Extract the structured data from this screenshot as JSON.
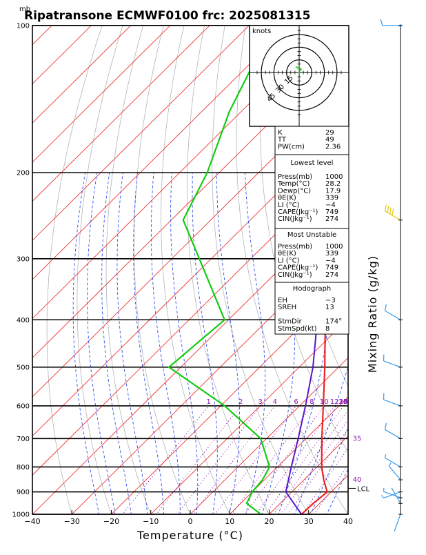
{
  "title": "Ripatransone ECMWF0100  frc: 2025081315",
  "pressure_unit": "mb",
  "colors": {
    "temperature": "#ee2020",
    "dewpoint": "#11cc11",
    "parcel": "#5a16c8",
    "isotherm": "#ee3333",
    "dry_adiabat": "#b4b4b4",
    "moist_adiabat": "#3050ee",
    "mixing_ratio": "#8a1ab0",
    "wind_barb_low": "#3399ee",
    "wind_barb_mid": "#e8c800"
  },
  "chart_data": {
    "type": "skew-t",
    "xlabel": "Temperature (°C)",
    "ylabel": "Mixing Ratio (g/kg)",
    "x_range": [
      -40,
      40
    ],
    "x_ticks": [
      "−40",
      "−30",
      "−20",
      "−10",
      "0",
      "10",
      "20",
      "30",
      "40"
    ],
    "pressure_range": [
      1000,
      100
    ],
    "pressure_ticks": [
      "1000",
      "900",
      "800",
      "700",
      "600",
      "500",
      "400",
      "300",
      "200",
      "100"
    ],
    "temperature_profile": [
      {
        "p": 1000,
        "t": 28.2
      },
      {
        "p": 950,
        "t": 28.4
      },
      {
        "p": 900,
        "t": 29.0
      },
      {
        "p": 850,
        "t": 25.0
      },
      {
        "p": 800,
        "t": 21.2
      },
      {
        "p": 700,
        "t": 14.0
      },
      {
        "p": 600,
        "t": 6.0
      },
      {
        "p": 500,
        "t": -3.5
      },
      {
        "p": 400,
        "t": -15.5
      },
      {
        "p": 300,
        "t": -31.0
      },
      {
        "p": 250,
        "t": -41.5
      },
      {
        "p": 200,
        "t": -52.5
      },
      {
        "p": 150,
        "t": -63.5
      },
      {
        "p": 100,
        "t": -76.0
      }
    ],
    "dewpoint_profile": [
      {
        "p": 1000,
        "t": 17.9
      },
      {
        "p": 950,
        "t": 11.5
      },
      {
        "p": 900,
        "t": 10.0
      },
      {
        "p": 850,
        "t": 9.5
      },
      {
        "p": 800,
        "t": 8.0
      },
      {
        "p": 700,
        "t": -1.5
      },
      {
        "p": 600,
        "t": -19.0
      },
      {
        "p": 500,
        "t": -43.0
      },
      {
        "p": 400,
        "t": -41.0
      },
      {
        "p": 300,
        "t": -63.0
      },
      {
        "p": 250,
        "t": -77.0
      },
      {
        "p": 200,
        "t": -83.0
      },
      {
        "p": 150,
        "t": -93.0
      },
      {
        "p": 100,
        "t": -104.0
      }
    ],
    "parcel_profile": [
      {
        "p": 1000,
        "t": 28.2
      },
      {
        "p": 900,
        "t": 18.5
      },
      {
        "p": 800,
        "t": 13.5
      },
      {
        "p": 700,
        "t": 8.0
      },
      {
        "p": 600,
        "t": 1.5
      },
      {
        "p": 500,
        "t": -6.5
      },
      {
        "p": 400,
        "t": -17.5
      },
      {
        "p": 300,
        "t": -33.5
      },
      {
        "p": 200,
        "t": -58.0
      },
      {
        "p": 100,
        "t": -100.0
      }
    ],
    "lcl_label": "LCL",
    "lcl_pressure": 885,
    "mixing_ratio_lines": [
      {
        "w": 1,
        "label": "1"
      },
      {
        "w": 2,
        "label": "2"
      },
      {
        "w": 3,
        "label": "3"
      },
      {
        "w": 4,
        "label": "4"
      },
      {
        "w": 6,
        "label": "6"
      },
      {
        "w": 8,
        "label": "8"
      },
      {
        "w": 10,
        "label": "10"
      },
      {
        "w": 12,
        "label": "12"
      },
      {
        "w": 14,
        "label": "14"
      },
      {
        "w": 16,
        "label": "16"
      },
      {
        "w": 18,
        "label": "18"
      },
      {
        "w": 20,
        "label": "20"
      },
      {
        "w": 25,
        "label": "25"
      },
      {
        "w": 30,
        "label": "30"
      }
    ],
    "right_isotherm_labels": [
      "35",
      "40"
    ],
    "winds": [
      {
        "p": 1000,
        "dir": 200,
        "spd": 2
      },
      {
        "p": 950,
        "dir": 330,
        "spd": 4
      },
      {
        "p": 925,
        "dir": 290,
        "spd": 6
      },
      {
        "p": 900,
        "dir": 250,
        "spd": 5
      },
      {
        "p": 850,
        "dir": 320,
        "spd": 5
      },
      {
        "p": 800,
        "dir": 300,
        "spd": 6
      },
      {
        "p": 700,
        "dir": 300,
        "spd": 10
      },
      {
        "p": 600,
        "dir": 290,
        "spd": 12
      },
      {
        "p": 500,
        "dir": 290,
        "spd": 14
      },
      {
        "p": 400,
        "dir": 300,
        "spd": 14
      },
      {
        "p": 250,
        "dir": 300,
        "spd": 40
      },
      {
        "p": 100,
        "dir": 270,
        "spd": 10
      }
    ],
    "hodograph": {
      "unit_label": "knots",
      "ring_labels": [
        "15",
        "30",
        "45"
      ],
      "points": [
        [
          0,
          -2
        ],
        [
          1,
          4
        ],
        [
          3,
          3
        ],
        [
          -4,
          7
        ]
      ]
    },
    "indices": {
      "header": [
        {
          "label": "K",
          "value": "29"
        },
        {
          "label": "TT",
          "value": "49"
        },
        {
          "label": "PW(cm)",
          "value": "2.36"
        }
      ],
      "lowest_level": {
        "title": "Lowest level",
        "rows": [
          {
            "label": "Press(mb)",
            "value": "1000"
          },
          {
            "label": "Temp(°C)",
            "value": "28.2"
          },
          {
            "label": "Dewp(°C)",
            "value": "17.9"
          },
          {
            "label": "θE(K)",
            "value": "339"
          },
          {
            "label": "LI (°C)",
            "value": "−4"
          },
          {
            "label": "CAPE(Jkg⁻¹)",
            "value": "749"
          },
          {
            "label": "CIN(Jkg⁻¹)",
            "value": "274"
          }
        ]
      },
      "most_unstable": {
        "title": "Most Unstable",
        "rows": [
          {
            "label": "Press(mb)",
            "value": "1000"
          },
          {
            "label": "θE(K)",
            "value": "339"
          },
          {
            "label": "LI (°C)",
            "value": "−4"
          },
          {
            "label": "CAPE(Jkg⁻¹)",
            "value": "749"
          },
          {
            "label": "CIN(Jkg⁻¹)",
            "value": "274"
          }
        ]
      },
      "hodograph_box": {
        "title": "Hodograph",
        "rows": [
          {
            "label": "EH",
            "value": "−3"
          },
          {
            "label": "SREH",
            "value": "13"
          },
          {
            "label": "",
            "value": ""
          },
          {
            "label": "StmDir",
            "value": "174°"
          },
          {
            "label": "StmSpd(kt)",
            "value": "8"
          }
        ]
      }
    }
  }
}
